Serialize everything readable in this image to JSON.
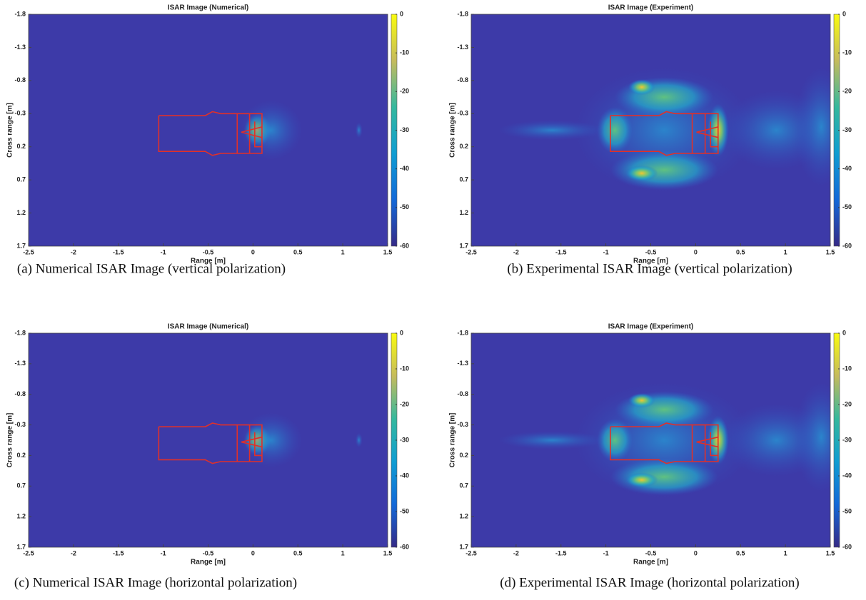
{
  "chart_data": [
    {
      "type": "heatmap",
      "title": "ISAR Image (Numerical)",
      "xlabel": "Range [m]",
      "ylabel": "Cross range [m]",
      "xlim": [
        -2.5,
        1.5
      ],
      "xticks": [
        -2.5,
        -2,
        -1.5,
        -1,
        -0.5,
        0,
        0.5,
        1,
        1.5
      ],
      "ylim": [
        -1.8,
        1.7
      ],
      "yticks": [
        -1.8,
        -1.3,
        -0.8,
        -0.3,
        0.2,
        0.7,
        1.2,
        1.7
      ],
      "y_reversed": true,
      "clim": [
        -60,
        0
      ],
      "cticks": [
        0,
        -10,
        -20,
        -30,
        -40,
        -50,
        -60
      ],
      "caption": "(a) Numerical ISAR Image (vertical polarization)"
    },
    {
      "type": "heatmap",
      "title": "ISAR Image (Experiment)",
      "xlabel": "Range [m]",
      "ylabel": "Cross range [m]",
      "xlim": [
        -2.5,
        1.5
      ],
      "xticks": [
        -2.5,
        -2,
        -1.5,
        -1,
        -0.5,
        0,
        0.5,
        1,
        1.5
      ],
      "ylim": [
        -1.8,
        1.7
      ],
      "yticks": [
        -1.8,
        -1.3,
        -0.8,
        -0.3,
        0.2,
        0.7,
        1.2,
        1.7
      ],
      "y_reversed": true,
      "clim": [
        -60,
        0
      ],
      "cticks": [
        0,
        -10,
        -20,
        -30,
        -40,
        -50,
        -60
      ],
      "caption": "(b) Experimental ISAR Image (vertical polarization)"
    },
    {
      "type": "heatmap",
      "title": "ISAR Image (Numerical)",
      "xlabel": "Range [m]",
      "ylabel": "Cross range [m]",
      "xlim": [
        -2.5,
        1.5
      ],
      "xticks": [
        -2.5,
        -2,
        -1.5,
        -1,
        -0.5,
        0,
        0.5,
        1,
        1.5
      ],
      "ylim": [
        -1.8,
        1.7
      ],
      "yticks": [
        -1.8,
        -1.3,
        -0.8,
        -0.3,
        0.2,
        0.7,
        1.2,
        1.7
      ],
      "y_reversed": true,
      "clim": [
        -60,
        0
      ],
      "cticks": [
        0,
        -10,
        -20,
        -30,
        -40,
        -50,
        -60
      ],
      "caption": "(c) Numerical ISAR Image (horizontal polarization)"
    },
    {
      "type": "heatmap",
      "title": "ISAR Image (Experiment)",
      "xlabel": "Range [m]",
      "ylabel": "Cross range [m]",
      "xlim": [
        -2.5,
        1.5
      ],
      "xticks": [
        -2.5,
        -2,
        -1.5,
        -1,
        -0.5,
        0,
        0.5,
        1,
        1.5
      ],
      "ylim": [
        -1.8,
        1.7
      ],
      "yticks": [
        -1.8,
        -1.3,
        -0.8,
        -0.3,
        0.2,
        0.7,
        1.2,
        1.7
      ],
      "y_reversed": true,
      "clim": [
        -60,
        0
      ],
      "cticks": [
        0,
        -10,
        -20,
        -30,
        -40,
        -50,
        -60
      ],
      "caption": "(d) Experimental ISAR Image (horizontal polarization)"
    }
  ]
}
